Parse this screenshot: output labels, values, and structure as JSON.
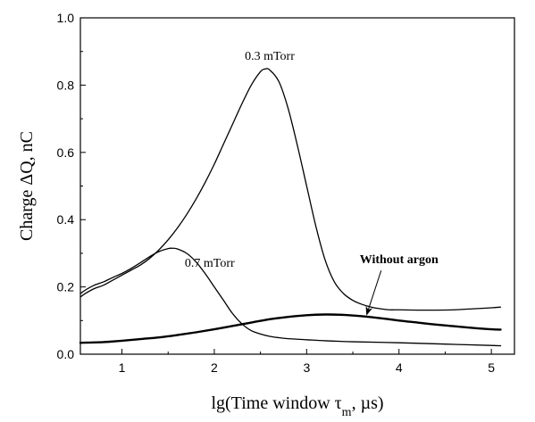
{
  "chart_data": {
    "type": "line",
    "xlabel": "lg(Time window τm, µs)",
    "xlabel_parts": {
      "before": "lg(Time window τ",
      "sub": "m",
      "after": ", µs)"
    },
    "ylabel": "Charge ΔQ, nC",
    "xlim": [
      0.55,
      5.25
    ],
    "ylim": [
      0.0,
      1.0
    ],
    "x_ticks": [
      1,
      2,
      3,
      4,
      5
    ],
    "x_tick_labels": [
      "1",
      "2",
      "3",
      "4",
      "5"
    ],
    "y_ticks": [
      0.0,
      0.2,
      0.4,
      0.6,
      0.8,
      1.0
    ],
    "y_tick_labels": [
      "0.0",
      "0.2",
      "0.4",
      "0.6",
      "0.8",
      "1.0"
    ],
    "grid": false,
    "series": [
      {
        "name": "0.3 mTorr",
        "stroke_width": 1.3,
        "x": [
          0.55,
          0.6,
          0.7,
          0.8,
          0.9,
          1.0,
          1.1,
          1.2,
          1.3,
          1.4,
          1.5,
          1.6,
          1.7,
          1.8,
          1.9,
          2.0,
          2.1,
          2.2,
          2.3,
          2.4,
          2.5,
          2.55,
          2.6,
          2.7,
          2.8,
          2.9,
          3.0,
          3.1,
          3.2,
          3.3,
          3.4,
          3.5,
          3.6,
          3.7,
          3.8,
          3.9,
          4.0,
          4.2,
          4.4,
          4.6,
          4.8,
          5.0,
          5.1
        ],
        "y": [
          0.17,
          0.18,
          0.195,
          0.205,
          0.22,
          0.235,
          0.25,
          0.265,
          0.285,
          0.31,
          0.34,
          0.375,
          0.415,
          0.46,
          0.51,
          0.565,
          0.625,
          0.685,
          0.745,
          0.8,
          0.84,
          0.848,
          0.845,
          0.81,
          0.73,
          0.62,
          0.5,
          0.38,
          0.28,
          0.215,
          0.18,
          0.16,
          0.148,
          0.14,
          0.135,
          0.132,
          0.132,
          0.131,
          0.131,
          0.132,
          0.135,
          0.138,
          0.14
        ]
      },
      {
        "name": "0.7 mTorr",
        "stroke_width": 1.3,
        "x": [
          0.55,
          0.6,
          0.7,
          0.8,
          0.9,
          1.0,
          1.1,
          1.2,
          1.3,
          1.4,
          1.5,
          1.55,
          1.6,
          1.7,
          1.8,
          1.9,
          2.0,
          2.1,
          2.2,
          2.3,
          2.4,
          2.5,
          2.6,
          2.7,
          2.8,
          3.0,
          3.2,
          3.5,
          4.0,
          4.5,
          5.0,
          5.1
        ],
        "y": [
          0.18,
          0.19,
          0.205,
          0.215,
          0.228,
          0.24,
          0.255,
          0.272,
          0.29,
          0.305,
          0.314,
          0.315,
          0.313,
          0.3,
          0.275,
          0.24,
          0.2,
          0.16,
          0.12,
          0.09,
          0.07,
          0.06,
          0.053,
          0.049,
          0.046,
          0.043,
          0.04,
          0.037,
          0.034,
          0.03,
          0.026,
          0.025
        ]
      },
      {
        "name": "Without argon",
        "stroke_width": 2.4,
        "x": [
          0.55,
          0.8,
          1.0,
          1.2,
          1.4,
          1.6,
          1.8,
          2.0,
          2.2,
          2.4,
          2.6,
          2.8,
          3.0,
          3.2,
          3.4,
          3.6,
          3.8,
          4.0,
          4.2,
          4.4,
          4.6,
          4.8,
          5.0,
          5.1
        ],
        "y": [
          0.034,
          0.036,
          0.04,
          0.045,
          0.05,
          0.057,
          0.065,
          0.074,
          0.084,
          0.094,
          0.104,
          0.111,
          0.116,
          0.118,
          0.117,
          0.113,
          0.107,
          0.1,
          0.094,
          0.088,
          0.083,
          0.078,
          0.074,
          0.073
        ]
      }
    ],
    "annotations": [
      {
        "text": "0.3 mTorr",
        "x": 2.6,
        "y": 0.875,
        "bold": false
      },
      {
        "text": "0.7 mTorr",
        "x": 1.95,
        "y": 0.26,
        "bold": false
      },
      {
        "text": "Without argon",
        "x": 4.0,
        "y": 0.27,
        "bold": true,
        "arrow_to": [
          3.65,
          0.107
        ]
      }
    ]
  }
}
